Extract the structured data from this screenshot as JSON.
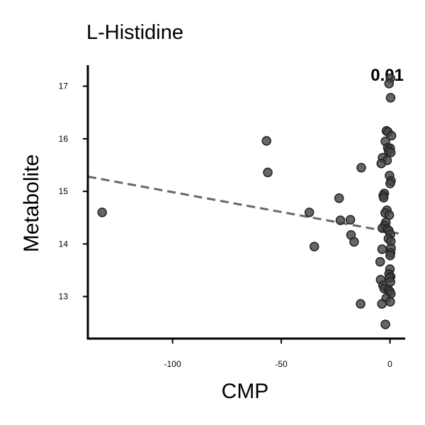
{
  "chart_data": {
    "type": "scatter",
    "title": "L-Histidine",
    "xlabel": "CMP",
    "ylabel": "Metabolite",
    "annotation": "0.01",
    "xlim": [
      -139,
      7
    ],
    "ylim": [
      12.2,
      17.4
    ],
    "xticks": [
      -100,
      -50,
      0
    ],
    "xtick_labels": [
      "-100",
      "-50",
      "0"
    ],
    "yticks": [
      13,
      14,
      15,
      16,
      17
    ],
    "ytick_labels": [
      "13",
      "14",
      "15",
      "16",
      "17"
    ],
    "grid": false,
    "trend_line": {
      "x": [
        -139,
        4
      ],
      "y": [
        15.28,
        14.2
      ],
      "style": "dashed"
    },
    "points": [
      {
        "x": -132.4,
        "y": 14.6
      },
      {
        "x": -56.8,
        "y": 15.96
      },
      {
        "x": -56.2,
        "y": 15.36
      },
      {
        "x": -37.1,
        "y": 14.6
      },
      {
        "x": -34.8,
        "y": 13.95
      },
      {
        "x": -23.4,
        "y": 14.87
      },
      {
        "x": -22.8,
        "y": 14.45
      },
      {
        "x": -18.2,
        "y": 14.46
      },
      {
        "x": -17.9,
        "y": 14.17
      },
      {
        "x": -16.5,
        "y": 14.04
      },
      {
        "x": -13.2,
        "y": 15.45
      },
      {
        "x": -13.5,
        "y": 12.86
      },
      {
        "x": 0.2,
        "y": 17.15
      },
      {
        "x": -0.4,
        "y": 17.05
      },
      {
        "x": 0.3,
        "y": 16.78
      },
      {
        "x": -1.6,
        "y": 16.15
      },
      {
        "x": -0.9,
        "y": 16.13
      },
      {
        "x": 0.7,
        "y": 16.06
      },
      {
        "x": -2.1,
        "y": 15.95
      },
      {
        "x": -1.0,
        "y": 15.83
      },
      {
        "x": 0.1,
        "y": 15.82
      },
      {
        "x": -0.6,
        "y": 15.77
      },
      {
        "x": 0.4,
        "y": 15.74
      },
      {
        "x": -3.4,
        "y": 15.64
      },
      {
        "x": -1.3,
        "y": 15.59
      },
      {
        "x": -4.0,
        "y": 15.53
      },
      {
        "x": -0.2,
        "y": 15.3
      },
      {
        "x": 0.5,
        "y": 15.2
      },
      {
        "x": 0.1,
        "y": 15.15
      },
      {
        "x": -2.6,
        "y": 14.96
      },
      {
        "x": -3.1,
        "y": 14.92
      },
      {
        "x": -2.9,
        "y": 14.88
      },
      {
        "x": -1.4,
        "y": 14.64
      },
      {
        "x": -2.2,
        "y": 14.59
      },
      {
        "x": -0.3,
        "y": 14.55
      },
      {
        "x": -1.9,
        "y": 14.41
      },
      {
        "x": -2.5,
        "y": 14.35
      },
      {
        "x": -3.5,
        "y": 14.3
      },
      {
        "x": -1.2,
        "y": 14.28
      },
      {
        "x": -0.5,
        "y": 14.25
      },
      {
        "x": 0.2,
        "y": 14.18
      },
      {
        "x": -0.7,
        "y": 14.1
      },
      {
        "x": 0.4,
        "y": 14.05
      },
      {
        "x": -3.6,
        "y": 13.9
      },
      {
        "x": 0.5,
        "y": 13.92
      },
      {
        "x": 0.3,
        "y": 13.83
      },
      {
        "x": 0.1,
        "y": 13.78
      },
      {
        "x": -4.5,
        "y": 13.66
      },
      {
        "x": 0.0,
        "y": 13.52
      },
      {
        "x": -0.4,
        "y": 13.43
      },
      {
        "x": 0.3,
        "y": 13.38
      },
      {
        "x": -0.2,
        "y": 13.35
      },
      {
        "x": 0.2,
        "y": 13.28
      },
      {
        "x": -4.3,
        "y": 13.32
      },
      {
        "x": -3.2,
        "y": 13.21
      },
      {
        "x": -2.6,
        "y": 13.15
      },
      {
        "x": -0.8,
        "y": 13.13
      },
      {
        "x": -0.1,
        "y": 13.1
      },
      {
        "x": 0.4,
        "y": 13.05
      },
      {
        "x": -1.7,
        "y": 12.97
      },
      {
        "x": 0.1,
        "y": 12.9
      },
      {
        "x": -3.7,
        "y": 12.86
      },
      {
        "x": -2.1,
        "y": 12.47
      }
    ]
  }
}
